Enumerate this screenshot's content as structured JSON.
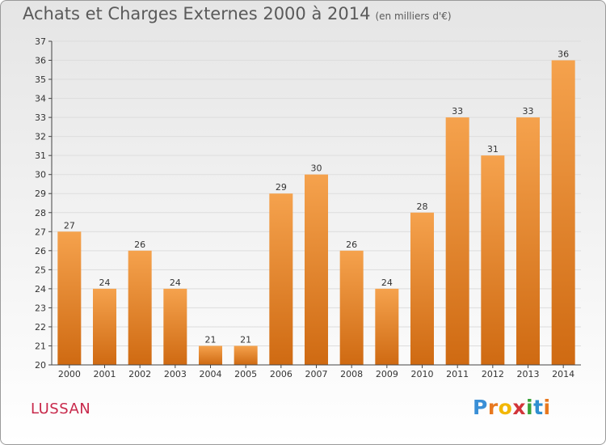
{
  "title": "Achats et Charges Externes 2000 à 2014",
  "subtitle": "(en milliers d'€)",
  "commune": "LUSSAN",
  "logo": {
    "text": "Proxiti",
    "letters": [
      "P",
      "r",
      "o",
      "x",
      "i",
      "t",
      "i"
    ],
    "colors": [
      "#3a8fd6",
      "#e8781f",
      "#f2b705",
      "#d2353a",
      "#3aa33a",
      "#2f8fd0",
      "#e8781f"
    ]
  },
  "colors": {
    "bar_top": "#f5a24d",
    "bar_bottom": "#cf6a12",
    "axis": "#444444",
    "grid": "#dddddd"
  },
  "chart_data": {
    "type": "bar",
    "categories": [
      "2000",
      "2001",
      "2002",
      "2003",
      "2004",
      "2005",
      "2006",
      "2007",
      "2008",
      "2009",
      "2010",
      "2011",
      "2012",
      "2013",
      "2014"
    ],
    "values": [
      27,
      24,
      26,
      24,
      21,
      21,
      29,
      30,
      26,
      24,
      28,
      33,
      31,
      33,
      36
    ],
    "title": "Achats et Charges Externes 2000 à 2014",
    "ylim": [
      20,
      37
    ],
    "yticks": [
      20,
      21,
      22,
      23,
      24,
      25,
      26,
      27,
      28,
      29,
      30,
      31,
      32,
      33,
      34,
      35,
      36,
      37
    ],
    "grid": true,
    "data_labels": true
  }
}
